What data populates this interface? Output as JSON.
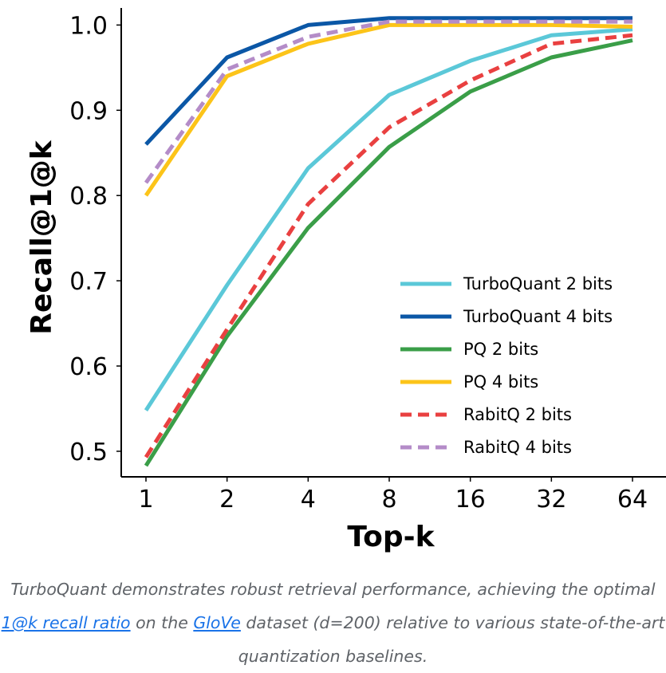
{
  "chart_data": {
    "type": "line",
    "title": "",
    "xlabel": "Top-k",
    "ylabel": "Recall@1@k",
    "categories": [
      "1",
      "2",
      "4",
      "8",
      "16",
      "32",
      "64"
    ],
    "ylim": [
      0.47,
      1.02
    ],
    "yticks": [
      0.5,
      0.6,
      0.7,
      0.8,
      0.9,
      1.0
    ],
    "ytick_labels": [
      "0.5",
      "0.6",
      "0.7",
      "0.8",
      "0.9",
      "1.0"
    ],
    "grid": false,
    "legend_position": "bottom-right",
    "series": [
      {
        "name": "TurboQuant 2 bits",
        "color": "#5bc8d8",
        "style": "solid",
        "values": [
          0.548,
          0.695,
          0.832,
          0.918,
          0.958,
          0.988,
          0.995
        ]
      },
      {
        "name": "TurboQuant 4 bits",
        "color": "#0b57a6",
        "style": "solid",
        "values": [
          0.86,
          0.962,
          1.0,
          1.008,
          1.008,
          1.008,
          1.008
        ]
      },
      {
        "name": "PQ 2 bits",
        "color": "#3a9e48",
        "style": "solid",
        "values": [
          0.483,
          0.635,
          0.762,
          0.857,
          0.922,
          0.962,
          0.982
        ]
      },
      {
        "name": "PQ 4 bits",
        "color": "#fcc419",
        "style": "solid",
        "values": [
          0.8,
          0.94,
          0.978,
          1.0,
          1.0,
          1.0,
          0.998
        ]
      },
      {
        "name": "RabitQ 2 bits",
        "color": "#e94040",
        "style": "dashed",
        "values": [
          0.493,
          0.643,
          0.79,
          0.88,
          0.935,
          0.978,
          0.988
        ]
      },
      {
        "name": "RabitQ 4 bits",
        "color": "#b48cc8",
        "style": "dashed",
        "values": [
          0.815,
          0.948,
          0.986,
          1.004,
          1.004,
          1.004,
          1.004
        ]
      }
    ]
  },
  "caption": {
    "part1": "TurboQuant demonstrates robust retrieval performance, achieving the optimal ",
    "link1": "1@k recall ratio",
    "part2": " on the ",
    "link2": "GloVe",
    "part3": " dataset (d=200) relative to various state-of-the-art quantization baselines."
  }
}
